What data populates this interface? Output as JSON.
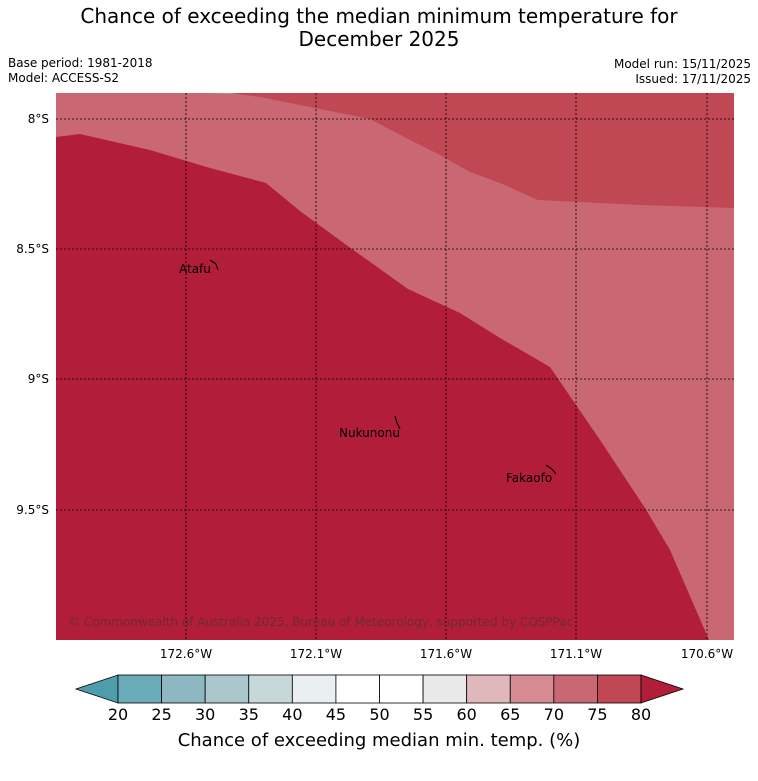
{
  "title_line1": "Chance of exceeding the median minimum temperature for",
  "title_line2": "December 2025",
  "meta_left": [
    "Base period: 1981-2018",
    "Model: ACCESS-S2"
  ],
  "meta_right": [
    "Model run: 15/11/2025",
    "Issued: 17/11/2025"
  ],
  "map": {
    "lat_ticks": [
      "8°S",
      "8.5°S",
      "9°S",
      "9.5°S"
    ],
    "lon_ticks": [
      "172.6°W",
      "172.1°W",
      "171.6°W",
      "171.1°W",
      "170.6°W"
    ],
    "places": [
      {
        "name": "Atafu"
      },
      {
        "name": "Nukunonu"
      },
      {
        "name": "Fakaofo"
      }
    ],
    "copyright": "© Commonwealth of Australia 2025, Bureau of Meteorology, supported by COSPPac",
    "zone_colors": {
      "above_80": "#b21d39",
      "75_80": "#c04754",
      "70_75": "#c96872",
      "65_70": "#d68a92",
      "60_65": "#e0b8bb"
    }
  },
  "colorbar": {
    "ticks": [
      "20",
      "25",
      "30",
      "35",
      "40",
      "45",
      "50",
      "55",
      "60",
      "65",
      "70",
      "75",
      "80"
    ],
    "colors": [
      "#6aabb8",
      "#8db8c2",
      "#a9c7cc",
      "#c7d8db",
      "#eaf0f1",
      "#ffffff",
      "#ffffff",
      "#e9e9e9",
      "#e0b8bb",
      "#d68a92",
      "#c96872",
      "#c04754"
    ],
    "under_color": "#4d9dac",
    "over_color": "#b21d39",
    "label": "Chance of exceeding median min. temp. (%)"
  }
}
